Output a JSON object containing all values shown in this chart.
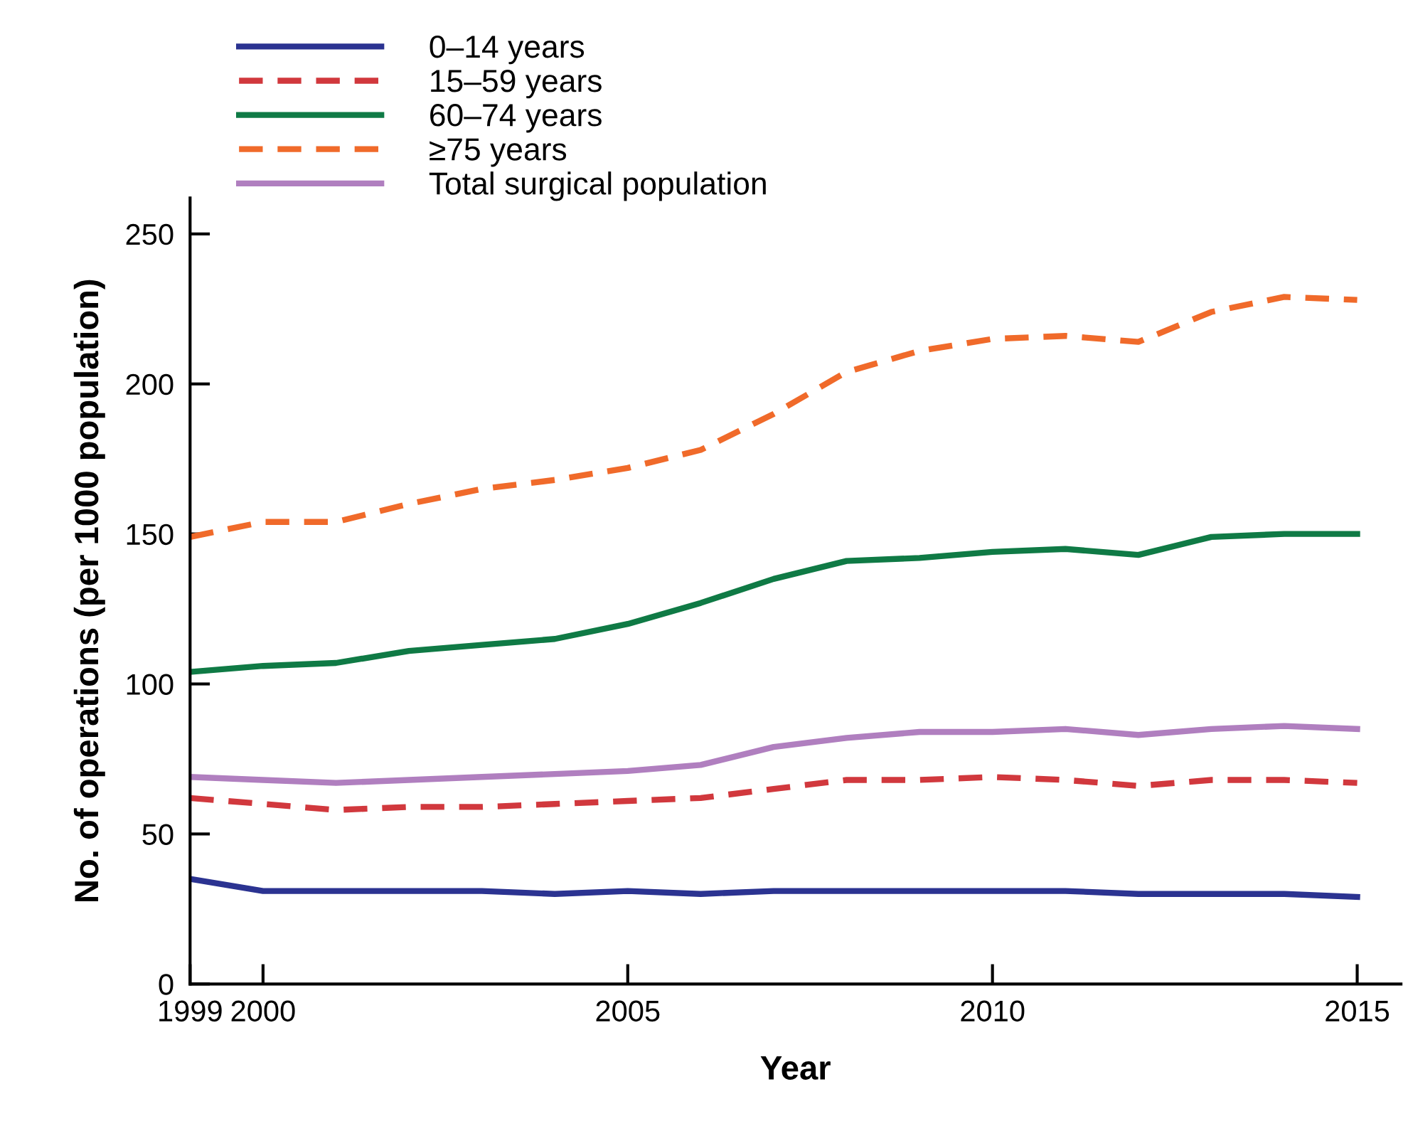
{
  "chart_data": {
    "type": "line",
    "xlabel": "Year",
    "ylabel": "No. of operations (per 1000 population)",
    "x": [
      1999,
      2000,
      2001,
      2002,
      2003,
      2004,
      2005,
      2006,
      2007,
      2008,
      2009,
      2010,
      2011,
      2012,
      2013,
      2014,
      2015
    ],
    "series": [
      {
        "name": "0–14 years",
        "color": "#2b3391",
        "line_style": "solid",
        "values": [
          35,
          31,
          31,
          31,
          31,
          30,
          31,
          30,
          31,
          31,
          31,
          31,
          31,
          30,
          30,
          30,
          29
        ]
      },
      {
        "name": "15–59 years",
        "color": "#d1383d",
        "line_style": "dashed",
        "values": [
          62,
          60,
          58,
          59,
          59,
          60,
          61,
          62,
          65,
          68,
          68,
          69,
          68,
          66,
          68,
          68,
          67
        ]
      },
      {
        "name": "60–74 years",
        "color": "#0f7a45",
        "line_style": "solid",
        "values": [
          104,
          106,
          107,
          111,
          113,
          115,
          120,
          127,
          135,
          141,
          142,
          144,
          145,
          143,
          149,
          150,
          150
        ]
      },
      {
        "name": "≥75 years",
        "color": "#f06a2a",
        "line_style": "dashed",
        "values": [
          149,
          154,
          154,
          160,
          165,
          168,
          172,
          178,
          190,
          204,
          211,
          215,
          216,
          214,
          224,
          229,
          228
        ]
      },
      {
        "name": "Total surgical population",
        "color": "#b07fbf",
        "line_style": "solid",
        "values": [
          69,
          68,
          67,
          68,
          69,
          70,
          71,
          73,
          79,
          82,
          84,
          84,
          85,
          83,
          85,
          86,
          85
        ]
      }
    ],
    "xlim": [
      1999,
      2015.6
    ],
    "xticks": [
      1999,
      2000,
      2005,
      2010,
      2015
    ],
    "ylim": [
      0,
      262
    ],
    "yticks": [
      0,
      50,
      100,
      150,
      200,
      250
    ],
    "grid": false,
    "legend": "top left"
  }
}
